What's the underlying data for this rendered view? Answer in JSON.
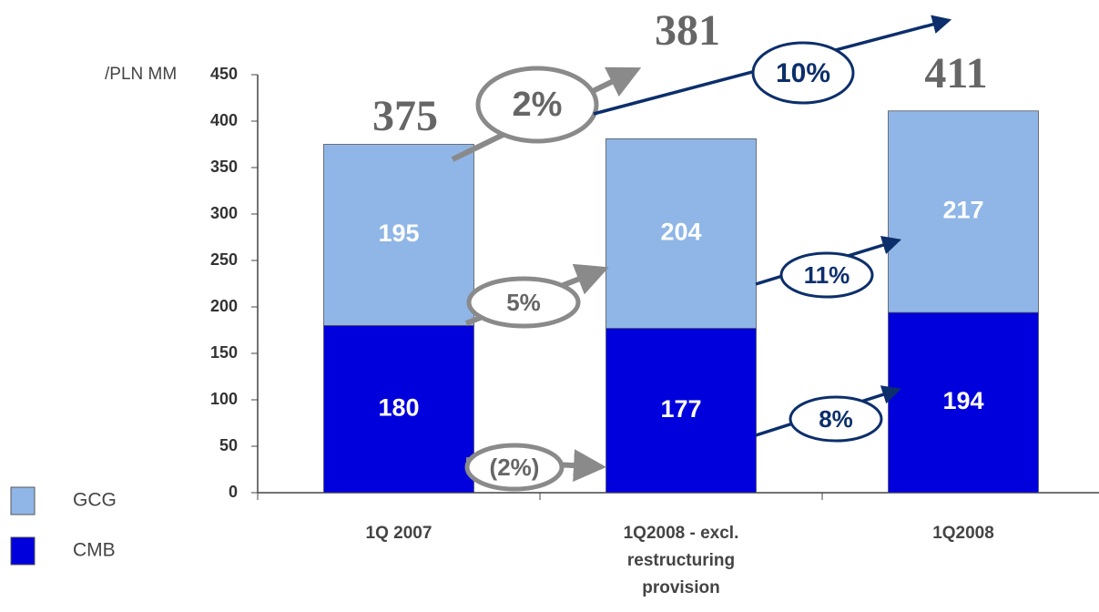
{
  "chart_data": {
    "type": "bar",
    "stacked": true,
    "y_label": "/PLN MM",
    "categories": [
      "1Q 2007",
      "1Q2008 - excl. restructuring provision",
      "1Q2008"
    ],
    "series": [
      {
        "name": "CMB",
        "color": "#0000dd",
        "values": [
          180,
          177,
          194
        ]
      },
      {
        "name": "GCG",
        "color": "#8fb6e6",
        "values": [
          195,
          204,
          217
        ]
      }
    ],
    "totals": [
      375,
      381,
      411
    ],
    "annotations": [
      "2%",
      "10%",
      "5%",
      "11%",
      "(2%)",
      "8%"
    ],
    "ylim": [
      0,
      450
    ],
    "yticks": [
      0,
      50,
      100,
      150,
      200,
      250,
      300,
      350,
      400,
      450
    ]
  }
}
